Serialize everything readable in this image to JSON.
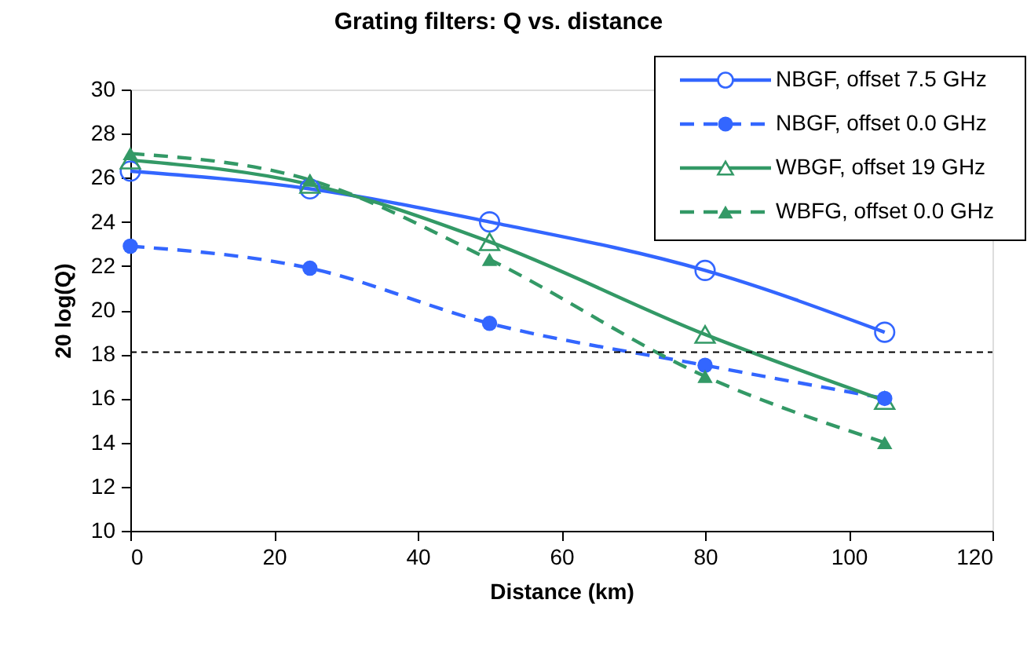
{
  "chart_data": {
    "type": "line",
    "title": "Grating filters:  Q vs. distance",
    "xlabel": "Distance (km)",
    "ylabel": "20 log(Q)",
    "x": [
      0,
      25,
      50,
      80,
      105
    ],
    "series": [
      {
        "name": "NBGF, offset 7.5 GHz",
        "color": "#3366ff",
        "marker": "circle",
        "line_style": "solid",
        "values": [
          26.3,
          25.5,
          24.0,
          21.8,
          19.0
        ]
      },
      {
        "name": "NBGF, offset 0.0 GHz",
        "color": "#3366ff",
        "marker": "circle",
        "line_style": "dashed",
        "values": [
          22.9,
          21.9,
          19.4,
          17.5,
          16.0
        ]
      },
      {
        "name": "WBGF, offset 19 GHz",
        "color": "#339966",
        "marker": "triangle",
        "line_style": "solid",
        "values": [
          26.8,
          25.7,
          23.1,
          18.9,
          15.9
        ]
      },
      {
        "name": "WBFG, offset 0.0 GHz",
        "color": "#339966",
        "marker": "triangle",
        "line_style": "dashed",
        "values": [
          27.1,
          25.9,
          22.3,
          17.0,
          14.0
        ]
      }
    ],
    "xlim": [
      0,
      120
    ],
    "xticks": [
      0,
      20,
      40,
      60,
      80,
      100,
      120
    ],
    "ylim": [
      10,
      30
    ],
    "yticks": [
      10,
      12,
      14,
      16,
      18,
      20,
      22,
      24,
      26,
      28,
      30
    ],
    "ref_lines": [
      {
        "axis": "y",
        "value": 18.1,
        "color": "#000000",
        "line_style": "dashed"
      }
    ],
    "grid": false,
    "legend": "top right"
  }
}
